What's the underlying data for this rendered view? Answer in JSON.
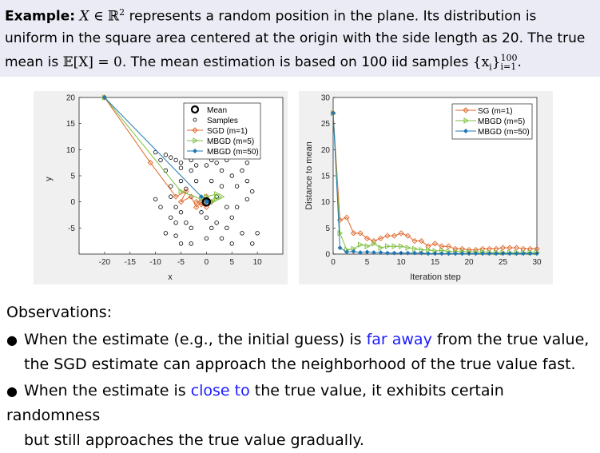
{
  "example": {
    "label": "Example:",
    "line1_a": "represents a random position in the plane. Its distribution is",
    "line2": "uniform in the square area centered at the origin with the side length as 20. The true",
    "line3_a": "mean is",
    "line3_b": ". The mean estimation is based on 100 iid samples",
    "math_X": "X",
    "math_in": " ∈ ",
    "math_R": "ℝ",
    "math_sq": "2",
    "math_EX": "𝔼[X] = 0",
    "math_set": "{x",
    "math_i": "i",
    "math_set_end": "}",
    "math_sup": "100",
    "math_sub": "i=1",
    "period": "."
  },
  "left_plot": {
    "xlabel": "x",
    "ylabel": "y",
    "xticks": [
      "-20",
      "-15",
      "-10",
      "-5",
      "0",
      "5",
      "10"
    ],
    "yticks": [
      "20",
      "15",
      "10",
      "5",
      "0",
      "-5"
    ],
    "legend": [
      "Mean",
      "Samples",
      "SGD (m=1)",
      "MBGD (m=5)",
      "MBGD (m=50)"
    ]
  },
  "right_plot": {
    "xlabel": "Iteration step",
    "ylabel": "Distance to mean",
    "xticks": [
      "0",
      "5",
      "10",
      "15",
      "20",
      "25",
      "30"
    ],
    "yticks": [
      "30",
      "25",
      "20",
      "15",
      "10",
      "5",
      "0"
    ],
    "legend": [
      "SG (m=1)",
      "MBGD (m=5)",
      "MBGD (m=50)"
    ]
  },
  "observations": {
    "title": "Observations:",
    "b1_a": "When the estimate (e.g., the initial guess) is ",
    "b1_hl": "far away",
    "b1_b": " from the true value,",
    "b1_c": "the SGD estimate can approach the neighborhood of the true value fast.",
    "b2_a": "When the estimate is ",
    "b2_hl": "close to",
    "b2_b": " the true value, it exhibits certain randomness",
    "b2_c": "but still approaches the true value gradually."
  },
  "colors": {
    "sgd": "#e0672a",
    "mbgd5": "#7fbf3f",
    "mbgd50": "#1f77b4",
    "highlight": "#1a1aff",
    "block_bg": "#ebebf5"
  },
  "chart_data": [
    {
      "type": "scatter",
      "xlabel": "x",
      "ylabel": "y",
      "xlim": [
        -25,
        15
      ],
      "ylim": [
        -10,
        20
      ],
      "series": [
        {
          "name": "Mean",
          "values": [
            [
              0,
              0
            ]
          ]
        },
        {
          "name": "Samples",
          "values": [
            [
              -10,
              9.5
            ],
            [
              -8,
              9
            ],
            [
              -7,
              8.5
            ],
            [
              -6,
              8
            ],
            [
              -5,
              7.5
            ],
            [
              -9,
              8
            ],
            [
              -3,
              8
            ],
            [
              -2,
              7
            ],
            [
              -1,
              9
            ],
            [
              1,
              8
            ],
            [
              2,
              7.5
            ],
            [
              4,
              8
            ],
            [
              6,
              9
            ],
            [
              8,
              7.5
            ],
            [
              7,
              6
            ],
            [
              -8,
              6
            ],
            [
              -5,
              6.5
            ],
            [
              -3,
              6
            ],
            [
              0,
              7
            ],
            [
              3,
              6
            ],
            [
              5,
              5
            ],
            [
              8,
              4
            ],
            [
              -7,
              3
            ],
            [
              -5,
              4
            ],
            [
              -4,
              2.5
            ],
            [
              -2,
              4
            ],
            [
              1,
              4
            ],
            [
              3,
              3
            ],
            [
              6,
              3
            ],
            [
              9,
              2
            ],
            [
              -10,
              0.5
            ],
            [
              -9,
              -1
            ],
            [
              -7,
              1
            ],
            [
              -6,
              -1
            ],
            [
              -3,
              1
            ],
            [
              -1,
              -2
            ],
            [
              2,
              1
            ],
            [
              4,
              -1
            ],
            [
              6,
              -1
            ],
            [
              8,
              0.5
            ],
            [
              -7,
              -3
            ],
            [
              -5,
              -2
            ],
            [
              -3,
              -5
            ],
            [
              0,
              -3
            ],
            [
              2,
              -4
            ],
            [
              5,
              -3
            ],
            [
              7,
              -6
            ],
            [
              10,
              -6
            ],
            [
              -8,
              -6
            ],
            [
              -6,
              -6.5
            ],
            [
              -5,
              -8
            ],
            [
              -3,
              -8
            ],
            [
              0,
              -7
            ],
            [
              3,
              -7
            ],
            [
              5,
              -8
            ],
            [
              9,
              -8
            ],
            [
              -4,
              -4
            ],
            [
              1,
              -5
            ],
            [
              4,
              -5
            ],
            [
              -6,
              -4
            ]
          ]
        },
        {
          "name": "SGD (m=1)",
          "values": [
            [
              -20,
              20
            ],
            [
              -11,
              7.5
            ],
            [
              -6,
              1
            ],
            [
              -4,
              2
            ],
            [
              -5,
              0
            ],
            [
              -3,
              1
            ],
            [
              -2,
              -1
            ],
            [
              -1,
              0
            ],
            [
              0,
              -1
            ],
            [
              -2,
              0
            ],
            [
              0,
              0.5
            ],
            [
              -1,
              -0.5
            ],
            [
              1,
              0
            ],
            [
              0,
              1
            ]
          ]
        },
        {
          "name": "MBGD (m=5)",
          "values": [
            [
              -20,
              20
            ],
            [
              -5,
              2
            ],
            [
              -1,
              0.5
            ],
            [
              1,
              0
            ],
            [
              0,
              1
            ],
            [
              2,
              1.5
            ],
            [
              1,
              0
            ],
            [
              3,
              1
            ],
            [
              2,
              0.5
            ]
          ]
        },
        {
          "name": "MBGD (m=50)",
          "values": [
            [
              -20,
              20
            ],
            [
              -1,
              1
            ],
            [
              0,
              0.5
            ],
            [
              0.5,
              0
            ],
            [
              0,
              0
            ],
            [
              0.3,
              0.2
            ]
          ]
        }
      ]
    },
    {
      "type": "line",
      "xlabel": "Iteration step",
      "ylabel": "Distance to mean",
      "xlim": [
        0,
        30
      ],
      "ylim": [
        0,
        30
      ],
      "x": [
        0,
        1,
        2,
        3,
        4,
        5,
        6,
        7,
        8,
        9,
        10,
        11,
        12,
        13,
        14,
        15,
        16,
        17,
        18,
        19,
        20,
        21,
        22,
        23,
        24,
        25,
        26,
        27,
        28,
        29,
        30
      ],
      "series": [
        {
          "name": "SG (m=1)",
          "values": [
            27,
            6.5,
            7,
            4,
            4,
            3,
            2.5,
            3,
            3.5,
            3.5,
            4,
            3.5,
            2.5,
            2.5,
            1.5,
            2,
            1.5,
            1.5,
            1,
            1,
            0.8,
            0.8,
            1,
            1,
            1,
            1.2,
            1.2,
            1.2,
            1,
            1,
            1
          ]
        },
        {
          "name": "MBGD (m=5)",
          "values": [
            27,
            4,
            0.8,
            1,
            1.8,
            1.5,
            2,
            1.2,
            1.5,
            1.5,
            1.5,
            1.2,
            1,
            0.8,
            0.8,
            0.6,
            0.7,
            0.5,
            0.5,
            0.5,
            0.4,
            0.4,
            0.4,
            0.3,
            0.3,
            0.3,
            0.3,
            0.3,
            0.3,
            0.3,
            0.3
          ]
        },
        {
          "name": "MBGD (m=50)",
          "values": [
            27,
            1.2,
            0.4,
            0.5,
            0.3,
            0.4,
            0.3,
            0.3,
            0.2,
            0.2,
            0.2,
            0.2,
            0.2,
            0.2,
            0.1,
            0.1,
            0.1,
            0.1,
            0.1,
            0.1,
            0.1,
            0.1,
            0.1,
            0.1,
            0.1,
            0.1,
            0.1,
            0.1,
            0.1,
            0.1,
            0.1
          ]
        }
      ]
    }
  ]
}
